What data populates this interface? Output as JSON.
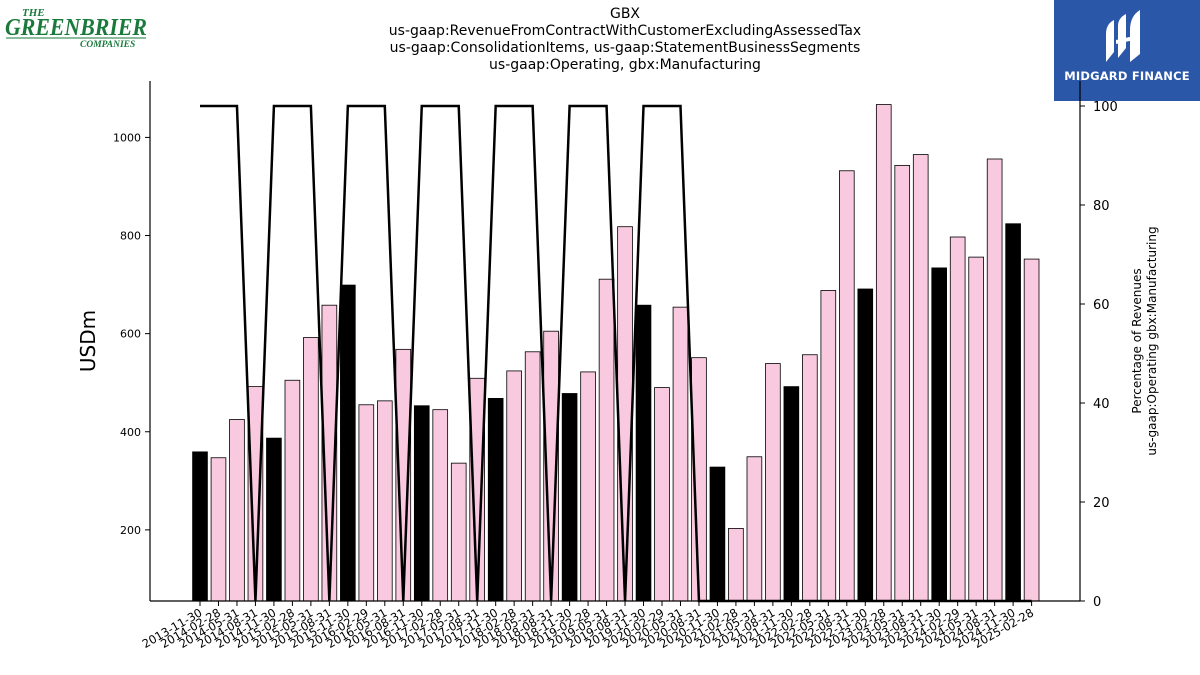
{
  "header": {
    "title_lines": [
      "GBX",
      "us-gaap:RevenueFromContractWithCustomerExcludingAssessedTax",
      "us-gaap:ConsolidationItems, us-gaap:StatementBusinessSegments",
      "us-gaap:Operating, gbx:Manufacturing"
    ]
  },
  "logos": {
    "left": {
      "line1": "THE",
      "line2": "GREENBRIER",
      "line3": "COMPANIES",
      "color": "#1a7a3c"
    },
    "right": {
      "brand": "MIDGARD FINANCE",
      "bg": "#2a57a8"
    }
  },
  "chart_data": {
    "type": "bar",
    "ylabel": "USDm",
    "y2label_lines": [
      "Percentage of Revenues",
      "us-gaap:Operating gbx:Manufacturing"
    ],
    "ylim": [
      55,
      1115
    ],
    "yticks": [
      200,
      400,
      600,
      800,
      1000
    ],
    "y2lim": [
      0,
      100
    ],
    "y2ticks": [
      0,
      20,
      40,
      60,
      80,
      100
    ],
    "grid": false,
    "colors": {
      "annual": "#000000",
      "quarterly": "#f9c9df",
      "edge": "#000000",
      "line": "#000000"
    },
    "categories": [
      "2013-11-30",
      "2014-02-28",
      "2014-05-31",
      "2014-08-31",
      "2014-11-30",
      "2015-02-28",
      "2015-05-31",
      "2015-08-31",
      "2015-11-30",
      "2016-02-29",
      "2016-05-31",
      "2016-08-31",
      "2016-11-30",
      "2017-02-28",
      "2017-05-31",
      "2017-08-31",
      "2017-11-30",
      "2018-02-28",
      "2018-05-31",
      "2018-08-31",
      "2018-11-30",
      "2019-02-28",
      "2019-05-31",
      "2019-08-31",
      "2019-11-30",
      "2020-02-29",
      "2020-05-31",
      "2020-08-31",
      "2020-11-30",
      "2021-02-28",
      "2021-05-31",
      "2021-08-31",
      "2021-11-30",
      "2022-02-28",
      "2022-05-31",
      "2022-08-31",
      "2022-11-30",
      "2023-02-28",
      "2023-05-31",
      "2023-08-31",
      "2023-11-30",
      "2024-02-29",
      "2024-05-31",
      "2024-08-31",
      "2024-11-30",
      "2025-02-28"
    ],
    "values": [
      359,
      347,
      425,
      492,
      387,
      505,
      592,
      658,
      699,
      455,
      463,
      568,
      453,
      445,
      336,
      509,
      468,
      524,
      563,
      605,
      478,
      522,
      711,
      818,
      658,
      490,
      654,
      551,
      328,
      203,
      349,
      539,
      492,
      557,
      688,
      932,
      691,
      1067,
      943,
      965,
      734,
      797,
      756,
      956,
      824,
      752
    ],
    "highlight": [
      1,
      0,
      0,
      0,
      1,
      0,
      0,
      0,
      1,
      0,
      0,
      0,
      1,
      0,
      0,
      0,
      1,
      0,
      0,
      0,
      1,
      0,
      0,
      0,
      1,
      0,
      0,
      0,
      1,
      0,
      0,
      0,
      1,
      0,
      0,
      0,
      1,
      0,
      0,
      0,
      1,
      0,
      0,
      0,
      1,
      0
    ],
    "percentage_series": [
      100,
      100,
      100,
      0,
      100,
      100,
      100,
      0,
      100,
      100,
      100,
      0,
      100,
      100,
      100,
      0,
      100,
      100,
      100,
      0,
      100,
      100,
      100,
      0,
      100,
      100,
      100,
      0,
      0,
      0,
      0,
      0,
      0,
      0,
      0,
      0,
      0,
      0,
      0,
      0,
      0,
      0,
      0,
      0,
      0,
      0
    ]
  }
}
